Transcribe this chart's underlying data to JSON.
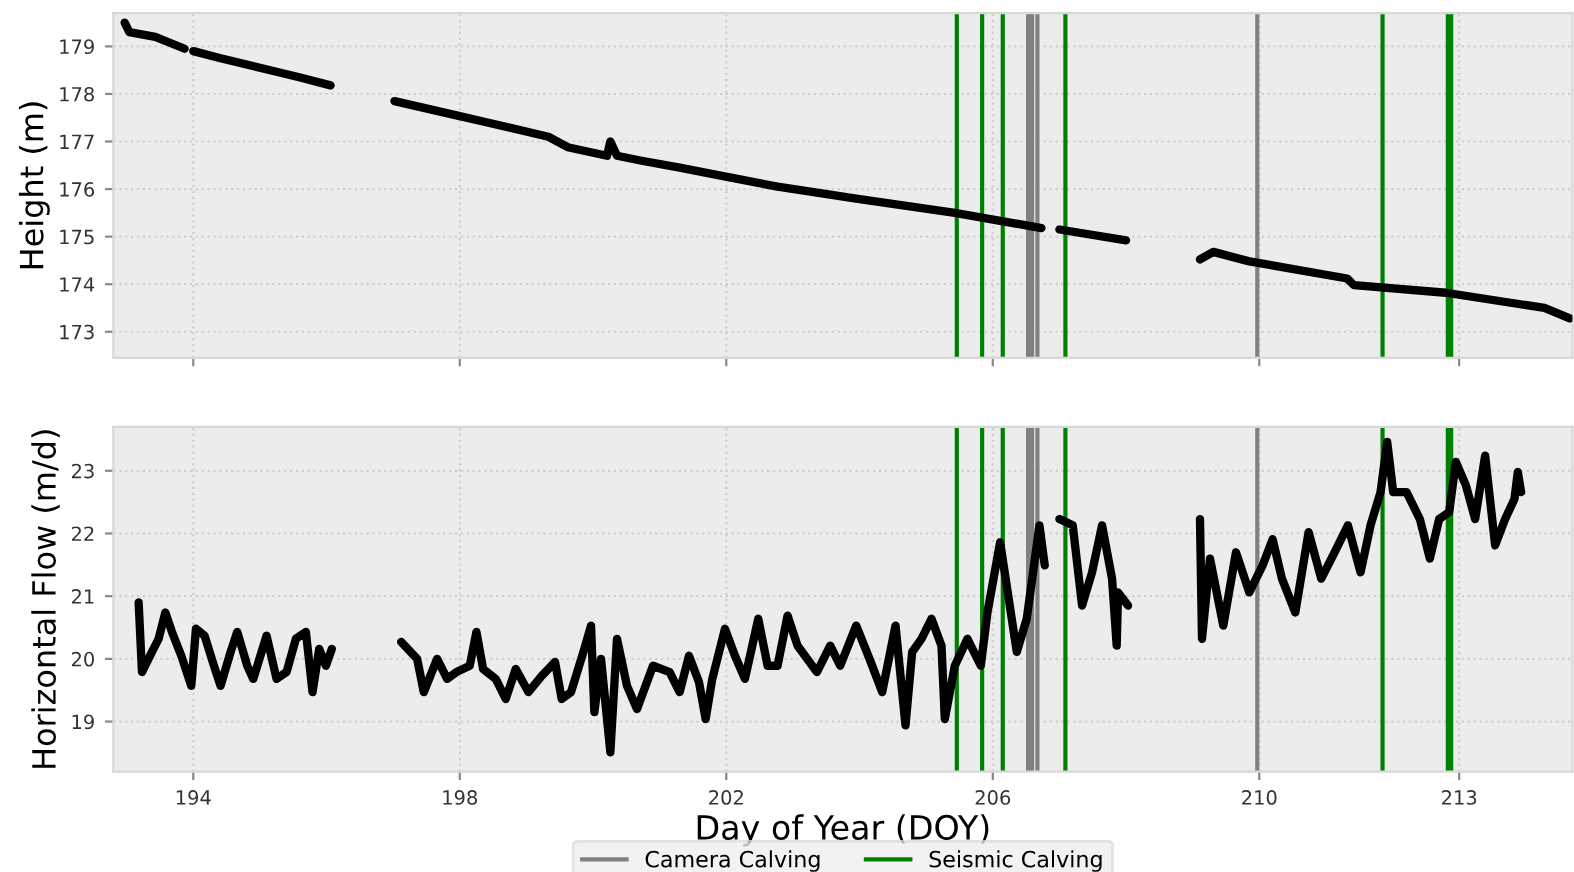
{
  "chart_data": [
    {
      "type": "line",
      "ylabel": "Height (m)",
      "xlim": [
        192.8,
        214.7
      ],
      "xticks": [
        194,
        198,
        202,
        206,
        210,
        213
      ],
      "ylim": [
        172.45,
        179.7
      ],
      "yticks": [
        173,
        174,
        175,
        176,
        177,
        178,
        179
      ],
      "tick_labels": "y",
      "grid": true,
      "legend": false,
      "marker": "none",
      "line_style": "solid",
      "series": [
        {
          "color": "#000000",
          "x": [
            192.97,
            193.04,
            193.43,
            193.87,
            193.93,
            194.0,
            194.41,
            195.0,
            195.59,
            196.06,
            196.5,
            197.02,
            197.95,
            198.35,
            199.33,
            199.62,
            200.21,
            200.26,
            200.36,
            200.71,
            201.3,
            202.03,
            202.77,
            203.95,
            205.43,
            206.73,
            206.85,
            207.0,
            208.0,
            208.6,
            209.11,
            209.31,
            209.85,
            211.32,
            211.42,
            212.8,
            214.28,
            214.66
          ],
          "values": [
            179.5,
            179.3,
            179.2,
            178.95,
            null,
            178.9,
            178.75,
            178.55,
            178.35,
            178.18,
            null,
            177.85,
            177.55,
            177.42,
            177.1,
            176.88,
            176.7,
            177.0,
            176.7,
            176.6,
            176.45,
            176.25,
            176.05,
            175.8,
            175.5,
            175.18,
            null,
            175.15,
            174.92,
            null,
            174.52,
            174.68,
            174.48,
            174.12,
            173.98,
            173.82,
            173.5,
            173.28
          ]
        }
      ],
      "ref_lines": [
        {
          "axis": "x",
          "value": 205.46,
          "color": "#008000"
        },
        {
          "axis": "x",
          "value": 205.84,
          "color": "#008000"
        },
        {
          "axis": "x",
          "value": 206.15,
          "color": "#008000"
        },
        {
          "axis": "x",
          "value": 206.53,
          "color": "#808080"
        },
        {
          "axis": "x",
          "value": 206.59,
          "color": "#808080"
        },
        {
          "axis": "x",
          "value": 206.67,
          "color": "#808080"
        },
        {
          "axis": "x",
          "value": 207.09,
          "color": "#008000"
        },
        {
          "axis": "x",
          "value": 209.97,
          "color": "#808080"
        },
        {
          "axis": "x",
          "value": 211.85,
          "color": "#008000"
        },
        {
          "axis": "x",
          "value": 212.83,
          "color": "#008000"
        },
        {
          "axis": "x",
          "value": 212.88,
          "color": "#008000"
        }
      ]
    },
    {
      "type": "line",
      "xlabel": "Day of Year (DOY)",
      "ylabel": "Horizontal Flow (m/d)",
      "xlim": [
        192.8,
        214.7
      ],
      "xticks": [
        194,
        198,
        202,
        206,
        210,
        213
      ],
      "ylim": [
        18.2,
        23.7
      ],
      "yticks": [
        19,
        20,
        21,
        22,
        23
      ],
      "grid": true,
      "legend": "bottom",
      "marker": "none",
      "line_style": "solid",
      "series": [
        {
          "color": "#000000",
          "x": [
            193.18,
            193.23,
            193.38,
            193.48,
            193.58,
            193.68,
            193.82,
            193.97,
            194.04,
            194.17,
            194.31,
            194.41,
            194.56,
            194.66,
            194.81,
            194.9,
            195.1,
            195.25,
            195.4,
            195.54,
            195.69,
            195.79,
            195.89,
            195.99,
            196.08,
            196.6,
            197.12,
            197.36,
            197.46,
            197.66,
            197.81,
            197.95,
            198.15,
            198.25,
            198.35,
            198.54,
            198.69,
            198.84,
            199.03,
            199.23,
            199.43,
            199.53,
            199.67,
            199.87,
            199.97,
            200.02,
            200.12,
            200.26,
            200.36,
            200.51,
            200.66,
            200.9,
            201.15,
            201.3,
            201.44,
            201.59,
            201.69,
            201.79,
            201.98,
            202.13,
            202.28,
            202.48,
            202.62,
            202.77,
            202.92,
            203.07,
            203.36,
            203.56,
            203.71,
            203.95,
            204.15,
            204.34,
            204.54,
            204.69,
            204.79,
            204.93,
            205.08,
            205.23,
            205.28,
            205.43,
            205.62,
            205.82,
            205.92,
            206.11,
            206.36,
            206.51,
            206.7,
            206.78,
            206.85,
            207.0,
            207.2,
            207.34,
            207.49,
            207.64,
            207.79,
            207.86,
            207.88,
            208.03,
            208.6,
            209.11,
            209.14,
            209.26,
            209.46,
            209.65,
            209.85,
            210.05,
            210.2,
            210.34,
            210.54,
            210.74,
            210.93,
            211.13,
            211.33,
            211.52,
            211.67,
            211.82,
            211.92,
            212.01,
            212.21,
            212.41,
            212.56,
            212.7,
            212.85,
            212.95,
            213.1,
            213.24,
            213.39,
            213.54,
            213.69,
            213.83,
            213.88,
            213.93
          ],
          "values": [
            20.9,
            19.79,
            20.11,
            20.32,
            20.74,
            20.43,
            20.05,
            19.57,
            20.48,
            20.37,
            19.89,
            19.57,
            20.11,
            20.43,
            19.89,
            19.68,
            20.37,
            19.68,
            19.79,
            20.32,
            20.43,
            19.47,
            20.16,
            19.89,
            20.16,
            null,
            20.27,
            20.0,
            19.47,
            20.0,
            19.68,
            19.79,
            19.89,
            20.43,
            19.84,
            19.68,
            19.36,
            19.84,
            19.47,
            19.73,
            19.95,
            19.36,
            19.47,
            20.16,
            20.53,
            19.15,
            20.0,
            18.51,
            20.32,
            19.57,
            19.2,
            19.89,
            19.79,
            19.47,
            20.05,
            19.63,
            19.04,
            19.68,
            20.48,
            20.05,
            19.68,
            20.64,
            19.89,
            19.89,
            20.69,
            20.21,
            19.79,
            20.21,
            19.89,
            20.53,
            20.0,
            19.47,
            20.53,
            18.94,
            20.11,
            20.32,
            20.64,
            20.21,
            19.04,
            19.89,
            20.32,
            19.89,
            20.74,
            21.86,
            20.11,
            20.64,
            22.13,
            21.49,
            null,
            22.23,
            22.13,
            20.85,
            21.38,
            22.13,
            21.28,
            20.21,
            21.06,
            20.85,
            null,
            22.23,
            20.32,
            21.6,
            20.53,
            21.7,
            21.06,
            21.49,
            21.91,
            21.28,
            20.74,
            22.02,
            21.28,
            21.7,
            22.13,
            21.38,
            22.13,
            22.66,
            23.46,
            22.66,
            22.66,
            22.23,
            21.6,
            22.23,
            22.34,
            23.14,
            22.77,
            22.23,
            23.24,
            21.81,
            22.23,
            22.55,
            22.98,
            22.66
          ]
        }
      ],
      "ref_lines": [
        {
          "axis": "x",
          "value": 206.53,
          "label": "Camera Calving",
          "color": "#808080"
        },
        {
          "axis": "x",
          "value": 206.59,
          "color": "#808080"
        },
        {
          "axis": "x",
          "value": 206.67,
          "color": "#808080"
        },
        {
          "axis": "x",
          "value": 209.97,
          "color": "#808080"
        },
        {
          "axis": "x",
          "value": 205.46,
          "label": "Seismic Calving",
          "color": "#008000"
        },
        {
          "axis": "x",
          "value": 205.84,
          "color": "#008000"
        },
        {
          "axis": "x",
          "value": 206.15,
          "color": "#008000"
        },
        {
          "axis": "x",
          "value": 207.09,
          "color": "#008000"
        },
        {
          "axis": "x",
          "value": 211.85,
          "color": "#008000"
        },
        {
          "axis": "x",
          "value": 212.83,
          "color": "#008000"
        },
        {
          "axis": "x",
          "value": 212.88,
          "color": "#008000"
        }
      ]
    }
  ]
}
